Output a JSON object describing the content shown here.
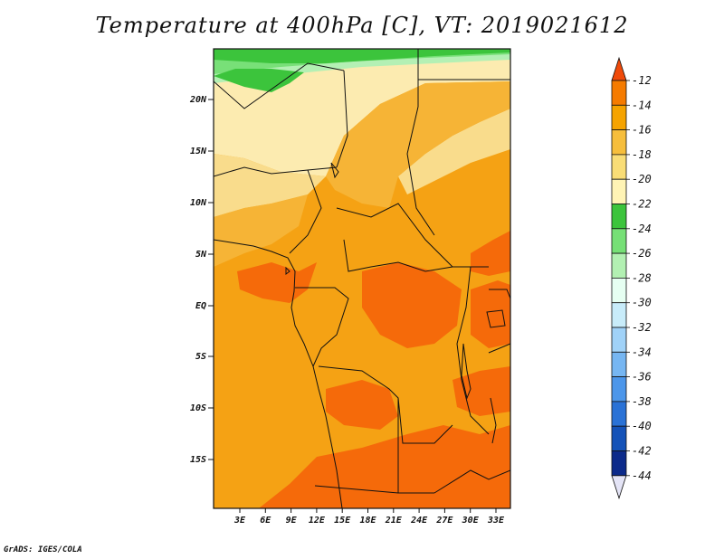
{
  "title": "Temperature at 400hPa [C], VT: 2019021612",
  "credit": "GrADS: IGES/COLA",
  "map": {
    "lat_labels": [
      "20N",
      "15N",
      "10N",
      "5N",
      "EQ",
      "5S",
      "10S",
      "15S"
    ],
    "lon_labels": [
      "3E",
      "6E",
      "9E",
      "12E",
      "15E",
      "18E",
      "21E",
      "24E",
      "27E",
      "30E",
      "33E"
    ]
  },
  "colorbar": {
    "labels": [
      "-12",
      "-14",
      "-16",
      "-18",
      "-20",
      "-22",
      "-24",
      "-26",
      "-28",
      "-30",
      "-32",
      "-34",
      "-36",
      "-38",
      "-40",
      "-42",
      "-44"
    ],
    "colors": [
      "#f04a0a",
      "#f57b00",
      "#f5a300",
      "#f6be3c",
      "#f9dd76",
      "#fff4b5",
      "#3cc43c",
      "#76e076",
      "#b2f0b2",
      "#e6fff2",
      "#c8ecfa",
      "#a0d2f8",
      "#76b6f2",
      "#4c96ea",
      "#2a72d6",
      "#1452b8",
      "#0c2a8a",
      "#0a1a5e"
    ]
  },
  "colors": {
    "hot": "#f56a0a",
    "warm": "#f5a214",
    "mild": "#f6b436",
    "cool": "#f9dc8c",
    "pale": "#fcebb0",
    "green_dark": "#3cc43c",
    "green_light": "#78e078",
    "green_pale": "#b4f0b4"
  }
}
